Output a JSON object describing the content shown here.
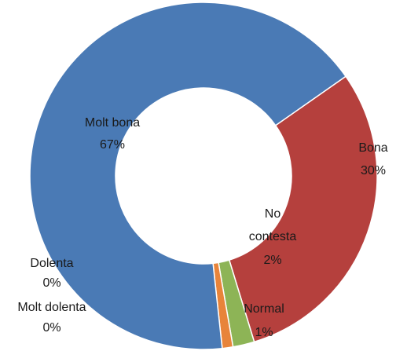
{
  "chart_data": {
    "type": "pie",
    "variant": "doughnut",
    "title": "",
    "legend": "none",
    "slices": [
      {
        "name": "Molt bona",
        "percent_label": "67%",
        "value": 67,
        "color": "#4a7ab5"
      },
      {
        "name": "Bona",
        "percent_label": "30%",
        "value": 30,
        "color": "#b5403d"
      },
      {
        "name": "No contesta",
        "percent_label": "2%",
        "value": 2,
        "color": "#8db456"
      },
      {
        "name": "Normal",
        "percent_label": "1%",
        "value": 1,
        "color": "#e8843a"
      },
      {
        "name": "Dolenta",
        "percent_label": "0%",
        "value": 0,
        "color": "#7a5ea6"
      },
      {
        "name": "Molt dolenta",
        "percent_label": "0%",
        "value": 0,
        "color": "#47a5c1"
      }
    ]
  }
}
